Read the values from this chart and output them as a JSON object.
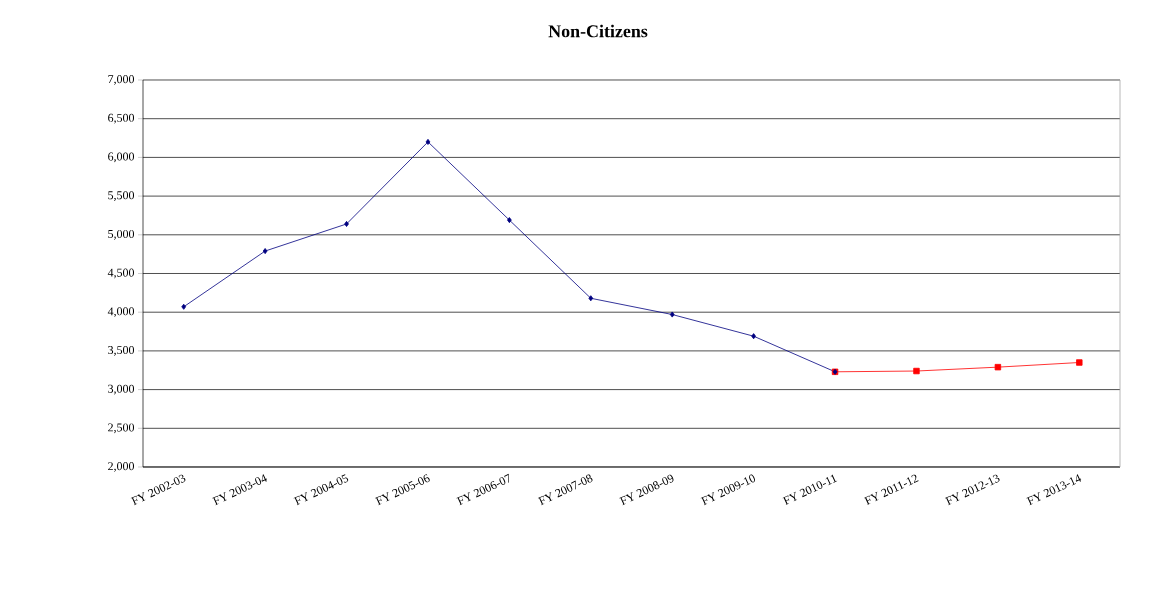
{
  "chart_data": {
    "type": "line",
    "title": "Non-Citizens",
    "categories": [
      "FY 2002-03",
      "FY 2003-04",
      "FY 2004-05",
      "FY 2005-06",
      "FY 2006-07",
      "FY 2007-08",
      "FY 2008-09",
      "FY 2009-10",
      "FY 2010-11",
      "FY 2011-12",
      "FY 2012-13",
      "FY 2013-14"
    ],
    "series": [
      {
        "color": "#ff0000",
        "marker": "square",
        "values": [
          null,
          null,
          null,
          null,
          null,
          null,
          null,
          null,
          3230,
          3240,
          3290,
          3350
        ]
      },
      {
        "color": "#000080",
        "marker": "diamond",
        "values": [
          4070,
          4790,
          5140,
          6200,
          5190,
          4180,
          3970,
          3690,
          3230,
          null,
          null,
          null
        ]
      }
    ],
    "ylim": [
      2000,
      7000
    ],
    "yticks": [
      {
        "value": 2000,
        "label": "2,000"
      },
      {
        "value": 2500,
        "label": "2,500"
      },
      {
        "value": 3000,
        "label": "3,000"
      },
      {
        "value": 3500,
        "label": "3,500"
      },
      {
        "value": 4000,
        "label": "4,000"
      },
      {
        "value": 4500,
        "label": "4,500"
      },
      {
        "value": 5000,
        "label": "5,000"
      },
      {
        "value": 5500,
        "label": "5,500"
      },
      {
        "value": 6000,
        "label": "6,000"
      },
      {
        "value": 6500,
        "label": "6,500"
      },
      {
        "value": 7000,
        "label": "7,000"
      }
    ],
    "grid": "y",
    "line_style": "solid"
  }
}
